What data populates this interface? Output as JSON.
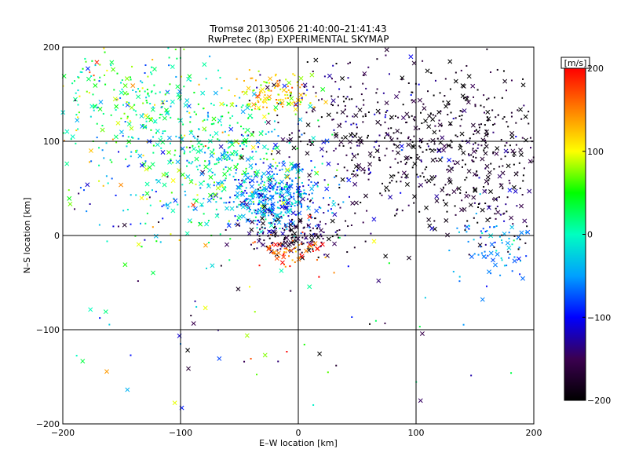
{
  "chart_data": {
    "type": "scatter",
    "title_line1": "Tromsø 20130506 21:40:00–21:41:43",
    "title_line2": "RwPretec (8p) EXPERIMENTAL SKYMAP",
    "xlabel": "E–W location [km]",
    "ylabel": "N–S location [km]",
    "xlim": [
      -200,
      200
    ],
    "ylim": [
      -200,
      200
    ],
    "xticks": [
      -200,
      -100,
      0,
      100,
      200
    ],
    "yticks": [
      -200,
      -100,
      0,
      100,
      200
    ],
    "grid": true,
    "marker_types": [
      "dot",
      "x"
    ],
    "colorbar": {
      "label": "[m/s]",
      "range": [
        -200,
        200
      ],
      "ticks": [
        200,
        100,
        0,
        -100,
        -200
      ],
      "colormap": [
        "#000000",
        "#3b0050",
        "#0000ff",
        "#00a0ff",
        "#00ffc0",
        "#00ff00",
        "#ffff00",
        "#ff8000",
        "#ff0000"
      ]
    },
    "clusters": [
      {
        "cx": 130,
        "cy": 100,
        "sx": 45,
        "sy": 40,
        "n": 480,
        "vmean": -185,
        "vsd": 25
      },
      {
        "cx": 40,
        "cy": 110,
        "sx": 35,
        "sy": 45,
        "n": 220,
        "vmean": -160,
        "vsd": 35
      },
      {
        "cx": -20,
        "cy": 40,
        "sx": 22,
        "sy": 18,
        "n": 420,
        "vmean": -60,
        "vsd": 40
      },
      {
        "cx": -70,
        "cy": 95,
        "sx": 38,
        "sy": 40,
        "n": 380,
        "vmean": 20,
        "vsd": 45
      },
      {
        "cx": -150,
        "cy": 145,
        "sx": 35,
        "sy": 30,
        "n": 200,
        "vmean": 30,
        "vsd": 55
      },
      {
        "cx": -20,
        "cy": 150,
        "sx": 18,
        "sy": 10,
        "n": 110,
        "vmean": 120,
        "vsd": 25
      },
      {
        "cx": -5,
        "cy": 0,
        "sx": 22,
        "sy": 12,
        "n": 180,
        "vmean": -170,
        "vsd": 30
      },
      {
        "cx": -5,
        "cy": -18,
        "sx": 18,
        "sy": 10,
        "n": 60,
        "vmean": 170,
        "vsd": 30
      },
      {
        "cx": 175,
        "cy": -15,
        "sx": 22,
        "sy": 18,
        "n": 90,
        "vmean": -60,
        "vsd": 25
      },
      {
        "cx": 170,
        "cy": 40,
        "sx": 25,
        "sy": 25,
        "n": 70,
        "vmean": -170,
        "vsd": 30
      },
      {
        "cx": -120,
        "cy": 60,
        "sx": 45,
        "sy": 45,
        "n": 160,
        "vmean": -20,
        "vsd": 90
      },
      {
        "cx": 0,
        "cy": -100,
        "sx": 120,
        "sy": 55,
        "n": 70,
        "vmean": -40,
        "vsd": 110
      }
    ]
  }
}
